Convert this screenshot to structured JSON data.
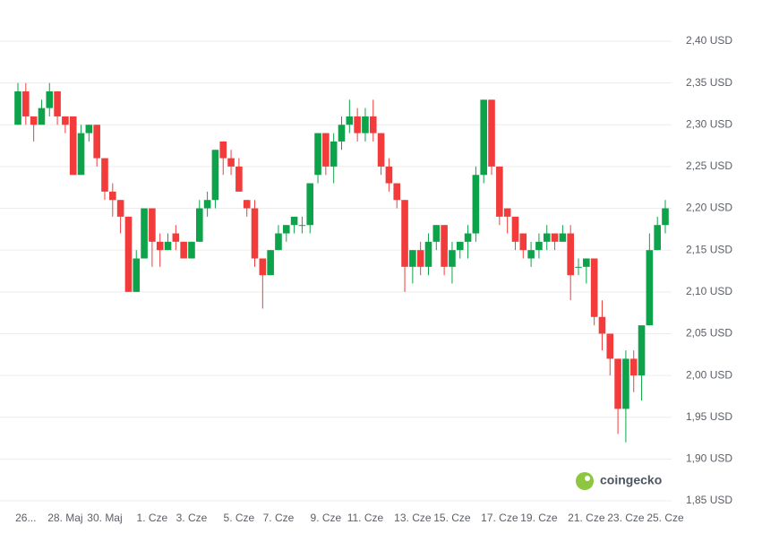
{
  "chart_data": {
    "type": "candlestick",
    "watermark": "coingecko",
    "categories": [
      null,
      "26...",
      null,
      null,
      null,
      null,
      "28. Maj",
      null,
      null,
      null,
      null,
      "30. Maj",
      null,
      null,
      null,
      null,
      null,
      "1. Cze",
      null,
      null,
      null,
      null,
      "3. Cze",
      null,
      null,
      null,
      null,
      null,
      "5. Cze",
      null,
      null,
      null,
      null,
      "7. Cze",
      null,
      null,
      null,
      null,
      null,
      "9. Cze",
      null,
      null,
      null,
      null,
      "11. Cze",
      null,
      null,
      null,
      null,
      null,
      "13. Cze",
      null,
      null,
      null,
      null,
      "15. Cze",
      null,
      null,
      null,
      null,
      null,
      "17. Cze",
      null,
      null,
      null,
      null,
      "19. Cze",
      null,
      null,
      null,
      null,
      null,
      "21. Cze",
      null,
      null,
      null,
      null,
      "23. Cze",
      null,
      null,
      null,
      null,
      "25. Cze"
    ],
    "open": [
      2.3,
      2.34,
      2.31,
      2.3,
      2.32,
      2.34,
      2.31,
      2.31,
      2.24,
      2.29,
      2.3,
      2.26,
      2.22,
      2.21,
      2.19,
      2.1,
      2.14,
      2.2,
      2.16,
      2.15,
      2.17,
      2.16,
      2.14,
      2.16,
      2.2,
      2.21,
      2.28,
      2.26,
      2.25,
      2.21,
      2.2,
      2.14,
      2.12,
      2.15,
      2.17,
      2.18,
      2.18,
      2.18,
      2.24,
      2.29,
      2.25,
      2.28,
      2.3,
      2.31,
      2.29,
      2.31,
      2.29,
      2.25,
      2.23,
      2.21,
      2.13,
      2.15,
      2.13,
      2.16,
      2.18,
      2.13,
      2.15,
      2.16,
      2.17,
      2.24,
      2.33,
      2.25,
      2.2,
      2.19,
      2.17,
      2.14,
      2.15,
      2.16,
      2.17,
      2.16,
      2.17,
      2.13,
      2.13,
      2.14,
      2.07,
      2.05,
      2.02,
      1.96,
      2.02,
      2.0,
      2.06,
      2.15,
      2.18
    ],
    "high": [
      2.35,
      2.35,
      2.31,
      2.33,
      2.35,
      2.34,
      2.31,
      2.31,
      2.3,
      2.3,
      2.3,
      2.26,
      2.23,
      2.21,
      2.19,
      2.15,
      2.2,
      2.2,
      2.17,
      2.17,
      2.18,
      2.16,
      2.16,
      2.21,
      2.22,
      2.27,
      2.28,
      2.27,
      2.26,
      2.21,
      2.21,
      2.14,
      2.15,
      2.18,
      2.18,
      2.19,
      2.19,
      2.23,
      2.29,
      2.29,
      2.29,
      2.31,
      2.33,
      2.32,
      2.32,
      2.33,
      2.29,
      2.26,
      2.23,
      2.21,
      2.15,
      2.16,
      2.17,
      2.18,
      2.18,
      2.16,
      2.16,
      2.18,
      2.25,
      2.33,
      2.33,
      2.25,
      2.2,
      2.19,
      2.17,
      2.16,
      2.17,
      2.18,
      2.17,
      2.18,
      2.18,
      2.14,
      2.14,
      2.14,
      2.09,
      2.05,
      2.02,
      2.03,
      2.03,
      2.06,
      2.17,
      2.19,
      2.21
    ],
    "low": [
      2.3,
      2.3,
      2.28,
      2.3,
      2.31,
      2.3,
      2.29,
      2.24,
      2.24,
      2.28,
      2.25,
      2.21,
      2.19,
      2.17,
      2.1,
      2.1,
      2.14,
      2.13,
      2.13,
      2.15,
      2.15,
      2.14,
      2.14,
      2.16,
      2.19,
      2.2,
      2.24,
      2.24,
      2.22,
      2.19,
      2.13,
      2.08,
      2.12,
      2.15,
      2.16,
      2.17,
      2.17,
      2.17,
      2.23,
      2.24,
      2.23,
      2.27,
      2.29,
      2.28,
      2.28,
      2.28,
      2.24,
      2.22,
      2.2,
      2.1,
      2.11,
      2.12,
      2.12,
      2.15,
      2.12,
      2.11,
      2.14,
      2.14,
      2.16,
      2.23,
      2.24,
      2.18,
      2.17,
      2.15,
      2.14,
      2.13,
      2.14,
      2.15,
      2.15,
      2.16,
      2.09,
      2.12,
      2.11,
      2.06,
      2.03,
      2.0,
      1.93,
      1.92,
      1.98,
      1.97,
      2.06,
      2.15,
      2.17
    ],
    "close": [
      2.34,
      2.31,
      2.3,
      2.32,
      2.34,
      2.31,
      2.3,
      2.24,
      2.29,
      2.3,
      2.26,
      2.22,
      2.21,
      2.19,
      2.1,
      2.14,
      2.2,
      2.16,
      2.15,
      2.16,
      2.16,
      2.14,
      2.16,
      2.2,
      2.21,
      2.27,
      2.26,
      2.25,
      2.22,
      2.2,
      2.14,
      2.12,
      2.15,
      2.17,
      2.18,
      2.19,
      2.18,
      2.23,
      2.29,
      2.25,
      2.28,
      2.3,
      2.31,
      2.29,
      2.31,
      2.29,
      2.25,
      2.23,
      2.21,
      2.13,
      2.15,
      2.13,
      2.16,
      2.18,
      2.13,
      2.15,
      2.16,
      2.17,
      2.24,
      2.33,
      2.25,
      2.19,
      2.19,
      2.16,
      2.15,
      2.15,
      2.16,
      2.17,
      2.16,
      2.17,
      2.12,
      2.13,
      2.14,
      2.07,
      2.05,
      2.02,
      1.96,
      2.02,
      2.0,
      2.06,
      2.15,
      2.18,
      2.2
    ],
    "up_color": "#0da34a",
    "down_color": "#f23c3c",
    "ylim": [
      1.85,
      2.4
    ],
    "yticks": [
      {
        "value": 1.85,
        "label": "1,85 USD"
      },
      {
        "value": 1.9,
        "label": "1,90 USD"
      },
      {
        "value": 1.95,
        "label": "1,95 USD"
      },
      {
        "value": 2.0,
        "label": "2,00 USD"
      },
      {
        "value": 2.05,
        "label": "2,05 USD"
      },
      {
        "value": 2.1,
        "label": "2,10 USD"
      },
      {
        "value": 2.15,
        "label": "2,15 USD"
      },
      {
        "value": 2.2,
        "label": "2,20 USD"
      },
      {
        "value": 2.25,
        "label": "2,25 USD"
      },
      {
        "value": 2.3,
        "label": "2,30 USD"
      },
      {
        "value": 2.35,
        "label": "2,35 USD"
      },
      {
        "value": 2.4,
        "label": "2,40 USD"
      }
    ],
    "grid": true
  }
}
